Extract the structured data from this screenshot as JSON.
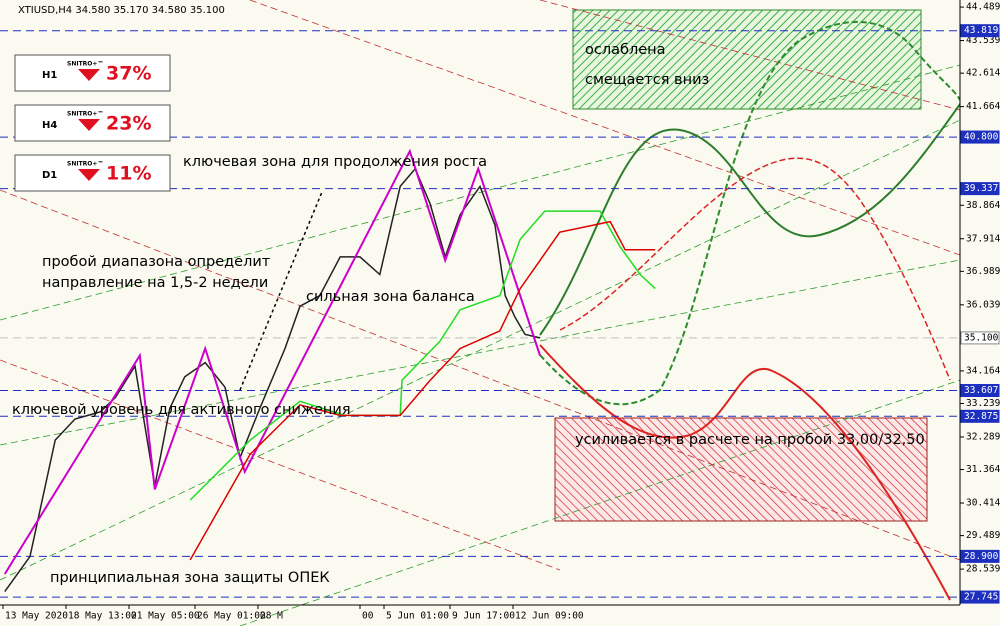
{
  "chart_data": {
    "type": "line",
    "title": "XTIUSD,H4  34.580 35.170 34.580 35.100",
    "xlim": [
      0,
      160
    ],
    "ylim": [
      27.52,
      44.69
    ],
    "xticks": [
      {
        "value": 0.5,
        "label": "13 May 2020"
      },
      {
        "value": 11,
        "label": "18 May 13:00"
      },
      {
        "value": 21.5,
        "label": "21 May 05:00"
      },
      {
        "value": 32.5,
        "label": "26 May 01:00"
      },
      {
        "value": 43,
        "label": "28 M"
      },
      {
        "value": 60,
        "label": "00"
      },
      {
        "value": 64,
        "label": "5 Jun 01:00"
      },
      {
        "value": 75,
        "label": "9 Jun 17:00"
      },
      {
        "value": 85.5,
        "label": "12 Jun 09:00"
      }
    ],
    "yticks": [
      44.489,
      43.539,
      42.614,
      41.664,
      38.864,
      37.914,
      36.989,
      36.039,
      34.164,
      33.239,
      32.289,
      31.364,
      30.414,
      29.489,
      28.539
    ],
    "levels": [
      {
        "value": 43.819,
        "label": "43.819",
        "color": "#1c2fbf"
      },
      {
        "value": 40.8,
        "label": "40.800",
        "color": "#1c2fbf"
      },
      {
        "value": 39.337,
        "label": "39.337",
        "color": "#1c2fbf"
      },
      {
        "value": 35.1,
        "label": "35.100",
        "color": "#c0c0c0"
      },
      {
        "value": 33.607,
        "label": "33.607",
        "color": "#1c2fbf"
      },
      {
        "value": 32.875,
        "label": "32.875",
        "color": "#1c2fbf"
      },
      {
        "value": 28.9,
        "label": "28.900",
        "color": "#1c2fbf"
      },
      {
        "value": 27.745,
        "label": "27.745",
        "color": "#1c2fbf"
      }
    ],
    "series": [
      {
        "color": "#222222",
        "x": [
          0.8,
          5,
          9.2,
          12.5,
          16.7,
          19.2,
          22.5,
          25.8,
          28.3,
          30.8,
          34.2,
          37.5,
          40,
          43.3,
          47.5,
          50,
          53.3,
          56.7,
          60,
          63.3,
          66.7,
          69.2,
          71.7,
          74.2,
          76.7,
          80,
          82.5,
          84.2,
          85.8,
          87.5,
          90
        ],
        "values": [
          27.9,
          28.9,
          32.2,
          32.8,
          33.0,
          33.4,
          34.3,
          30.9,
          33.1,
          34.0,
          34.4,
          33.7,
          31.7,
          33.1,
          34.8,
          36.0,
          36.3,
          37.4,
          37.4,
          36.9,
          39.4,
          39.9,
          38.9,
          37.4,
          38.6,
          39.4,
          38.3,
          36.3,
          35.7,
          35.2,
          35.1
        ]
      },
      {
        "color": "#cc00cc",
        "x": [
          0.8,
          23.3,
          25.8,
          34.2,
          40.8,
          68.3,
          74.2,
          79.7,
          90
        ],
        "values": [
          28.4,
          34.6,
          30.8,
          34.8,
          31.3,
          40.4,
          37.3,
          39.9,
          34.6
        ]
      },
      {
        "color": "#22dd22",
        "x": [
          31.7,
          41.7,
          50,
          57.5,
          66.7,
          67,
          73.3,
          76.7,
          83.3,
          86.7,
          90.8,
          100,
          103.3,
          106.7,
          109.2
        ],
        "values": [
          30.5,
          32.2,
          33.3,
          32.9,
          32.9,
          33.9,
          35.0,
          35.9,
          36.3,
          37.9,
          38.7,
          38.7,
          37.7,
          36.9,
          36.5
        ]
      },
      {
        "color": "#dd0000",
        "x": [
          31.7,
          41.7,
          50,
          56.7,
          66.7,
          71.7,
          76.7,
          83.3,
          86.7,
          90,
          93.3,
          101.7,
          104.2,
          109.2
        ],
        "values": [
          28.8,
          31.8,
          33.2,
          32.9,
          32.9,
          33.9,
          34.8,
          35.3,
          36.5,
          37.3,
          38.1,
          38.4,
          37.6,
          37.6
        ]
      }
    ],
    "annotations": [
      "ослаблена",
      "смещается вниз",
      "ключевая зона для продолжения роста",
      "пробой диапазона определит",
      "направление на 1,5-2 недели",
      "сильная зона баланса",
      "ключевой уровень для активного снижения",
      "усиливается в расчете на пробой 33,00/32,50",
      "принципиальная зона защиты ОПЕК"
    ],
    "panels": [
      {
        "timeframe": "H1",
        "brand": "SNITRO+™",
        "label": "37%"
      },
      {
        "timeframe": "H4",
        "brand": "SNITRO+™",
        "label": "23%"
      },
      {
        "timeframe": "D1",
        "brand": "SNITRO+™",
        "label": "11%"
      }
    ]
  }
}
